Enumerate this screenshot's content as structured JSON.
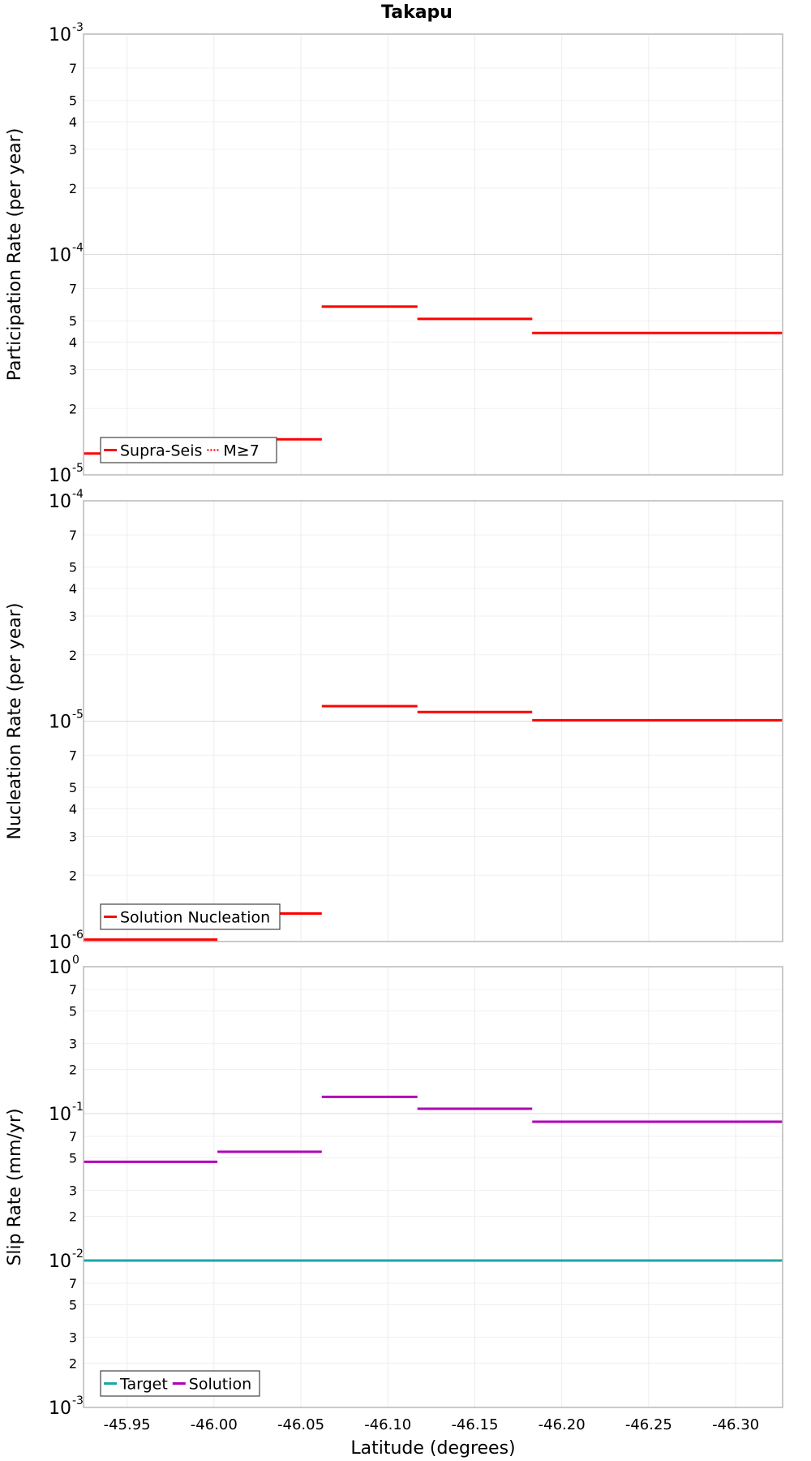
{
  "chart_data": {
    "title": "Takapu",
    "xlabel": "Latitude (degrees)",
    "x_axis": {
      "reversed": true,
      "xlim": [
        -45.925,
        -46.327
      ],
      "ticks": [
        -45.95,
        -46.0,
        -46.05,
        -46.1,
        -46.15,
        -46.2,
        -46.25,
        -46.3
      ],
      "tick_labels": [
        "-45.95",
        "-46.00",
        "-46.05",
        "-46.10",
        "-46.15",
        "-46.20",
        "-46.25",
        "-46.30"
      ],
      "grid": true
    },
    "panels": [
      {
        "type": "line",
        "ylabel": "Participation Rate (per year)",
        "yscale": "log",
        "ylim": [
          1e-05,
          0.001
        ],
        "major_ticks": [
          {
            "value": 0.001,
            "base": "10",
            "exp": "-3"
          },
          {
            "value": 0.0001,
            "base": "10",
            "exp": "-4"
          },
          {
            "value": 1e-05,
            "base": "10",
            "exp": "-5"
          }
        ],
        "minor_ticks": [
          {
            "value": 0.0002,
            "label": "2"
          },
          {
            "value": 0.0003,
            "label": "3"
          },
          {
            "value": 0.0004,
            "label": "4"
          },
          {
            "value": 0.0005,
            "label": "5"
          },
          {
            "value": 0.0007,
            "label": "7"
          },
          {
            "value": 2e-05,
            "label": "2"
          },
          {
            "value": 3e-05,
            "label": "3"
          },
          {
            "value": 4e-05,
            "label": "4"
          },
          {
            "value": 5e-05,
            "label": "5"
          },
          {
            "value": 7e-05,
            "label": "7"
          }
        ],
        "legend_position": "bottom-left",
        "series": [
          {
            "name": "Supra-Seis",
            "color": "#ff0000",
            "style": "solid",
            "segments": [
              {
                "x": [
                  -45.925,
                  -46.002
                ],
                "y": 1.25e-05
              },
              {
                "x": [
                  -46.002,
                  -46.062
                ],
                "y": 1.45e-05
              },
              {
                "x": [
                  -46.062,
                  -46.117
                ],
                "y": 5.8e-05
              },
              {
                "x": [
                  -46.117,
                  -46.183
                ],
                "y": 5.1e-05
              },
              {
                "x": [
                  -46.183,
                  -46.327
                ],
                "y": 4.4e-05
              }
            ]
          },
          {
            "name": "M≥7",
            "color": "#ff0000",
            "style": "dotted",
            "segments": [
              {
                "x": [
                  -45.925,
                  -46.002
                ],
                "y": 1.25e-05
              },
              {
                "x": [
                  -46.002,
                  -46.062
                ],
                "y": 1.45e-05
              },
              {
                "x": [
                  -46.062,
                  -46.117
                ],
                "y": 5.8e-05
              },
              {
                "x": [
                  -46.117,
                  -46.183
                ],
                "y": 5.1e-05
              },
              {
                "x": [
                  -46.183,
                  -46.327
                ],
                "y": 4.4e-05
              }
            ]
          }
        ]
      },
      {
        "type": "line",
        "ylabel": "Nucleation Rate (per year)",
        "yscale": "log",
        "ylim": [
          1e-06,
          0.0001
        ],
        "major_ticks": [
          {
            "value": 0.0001,
            "base": "10",
            "exp": "-4"
          },
          {
            "value": 1e-05,
            "base": "10",
            "exp": "-5"
          },
          {
            "value": 1e-06,
            "base": "10",
            "exp": "-6"
          }
        ],
        "minor_ticks": [
          {
            "value": 2e-05,
            "label": "2"
          },
          {
            "value": 3e-05,
            "label": "3"
          },
          {
            "value": 4e-05,
            "label": "4"
          },
          {
            "value": 5e-05,
            "label": "5"
          },
          {
            "value": 7e-05,
            "label": "7"
          },
          {
            "value": 2e-06,
            "label": "2"
          },
          {
            "value": 3e-06,
            "label": "3"
          },
          {
            "value": 4e-06,
            "label": "4"
          },
          {
            "value": 5e-06,
            "label": "5"
          },
          {
            "value": 7e-06,
            "label": "7"
          }
        ],
        "legend_position": "bottom-left",
        "series": [
          {
            "name": "Solution Nucleation",
            "color": "#ff0000",
            "style": "solid",
            "segments": [
              {
                "x": [
                  -45.925,
                  -46.002
                ],
                "y": 1.02e-06
              },
              {
                "x": [
                  -46.002,
                  -46.062
                ],
                "y": 1.34e-06
              },
              {
                "x": [
                  -46.062,
                  -46.117
                ],
                "y": 1.17e-05
              },
              {
                "x": [
                  -46.117,
                  -46.183
                ],
                "y": 1.1e-05
              },
              {
                "x": [
                  -46.183,
                  -46.327
                ],
                "y": 1.01e-05
              }
            ]
          }
        ]
      },
      {
        "type": "line",
        "ylabel": "Slip Rate (mm/yr)",
        "yscale": "log",
        "ylim": [
          0.001,
          1
        ],
        "major_ticks": [
          {
            "value": 1,
            "base": "10",
            "exp": "0"
          },
          {
            "value": 0.1,
            "base": "10",
            "exp": "-1"
          },
          {
            "value": 0.01,
            "base": "10",
            "exp": "-2"
          },
          {
            "value": 0.001,
            "base": "10",
            "exp": "-3"
          }
        ],
        "minor_ticks": [
          {
            "value": 0.2,
            "label": "2"
          },
          {
            "value": 0.3,
            "label": "3"
          },
          {
            "value": 0.5,
            "label": "5"
          },
          {
            "value": 0.7,
            "label": "7"
          },
          {
            "value": 0.02,
            "label": "2"
          },
          {
            "value": 0.03,
            "label": "3"
          },
          {
            "value": 0.05,
            "label": "5"
          },
          {
            "value": 0.07,
            "label": "7"
          },
          {
            "value": 0.002,
            "label": "2"
          },
          {
            "value": 0.003,
            "label": "3"
          },
          {
            "value": 0.005,
            "label": "5"
          },
          {
            "value": 0.007,
            "label": "7"
          }
        ],
        "legend_position": "bottom-left",
        "series": [
          {
            "name": "Target",
            "color": "#1aa7a7",
            "style": "solid",
            "segments": [
              {
                "x": [
                  -45.925,
                  -46.327
                ],
                "y": 0.01
              }
            ]
          },
          {
            "name": "Solution",
            "color": "#b000b8",
            "style": "solid",
            "segments": [
              {
                "x": [
                  -45.925,
                  -46.002
                ],
                "y": 0.047
              },
              {
                "x": [
                  -46.002,
                  -46.062
                ],
                "y": 0.055
              },
              {
                "x": [
                  -46.062,
                  -46.117
                ],
                "y": 0.13
              },
              {
                "x": [
                  -46.117,
                  -46.183
                ],
                "y": 0.108
              },
              {
                "x": [
                  -46.183,
                  -46.327
                ],
                "y": 0.088
              }
            ]
          }
        ]
      }
    ]
  }
}
